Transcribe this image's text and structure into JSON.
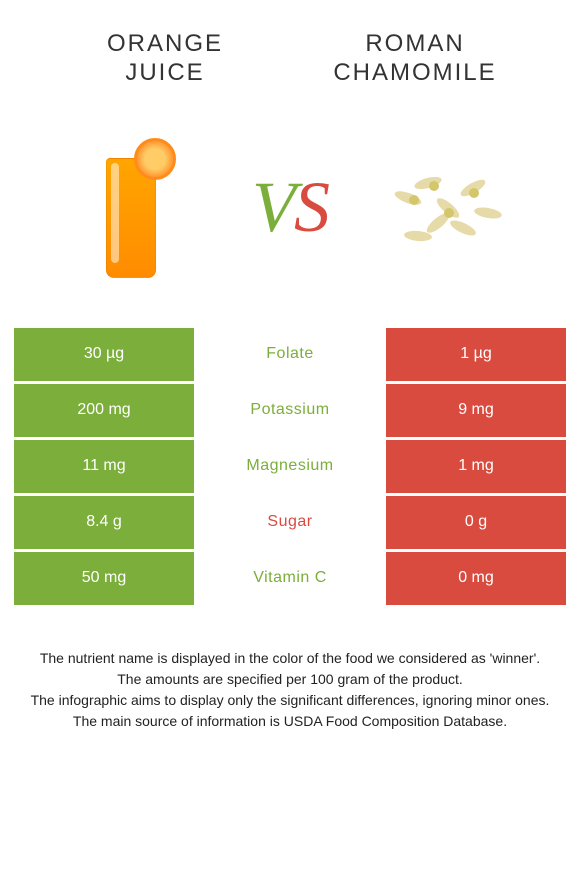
{
  "left_item": {
    "title_line1": "ORANGE",
    "title_line2": "JUICE"
  },
  "right_item": {
    "title_line1": "ROMAN",
    "title_line2": "CHAMOMILE"
  },
  "vs": {
    "v": "V",
    "s": "S"
  },
  "colors": {
    "left_bg": "#7bae3a",
    "right_bg": "#d94a3f",
    "nutrient_left_win": "#7bae3a",
    "nutrient_right_win": "#d94a3f",
    "footer_text": "#222222"
  },
  "rows": [
    {
      "left": "30 µg",
      "nutrient": "Folate",
      "right": "1 µg",
      "winner": "left"
    },
    {
      "left": "200 mg",
      "nutrient": "Potassium",
      "right": "9 mg",
      "winner": "left"
    },
    {
      "left": "11 mg",
      "nutrient": "Magnesium",
      "right": "1 mg",
      "winner": "left"
    },
    {
      "left": "8.4 g",
      "nutrient": "Sugar",
      "right": "0 g",
      "winner": "right"
    },
    {
      "left": "50 mg",
      "nutrient": "Vitamin C",
      "right": "0 mg",
      "winner": "left"
    }
  ],
  "footer": {
    "line1": "The nutrient name is displayed in the color of the food we considered as 'winner'.",
    "line2": "The amounts are specified per 100 gram of the product.",
    "line3": "The infographic aims to display only the significant differences, ignoring minor ones.",
    "line4": "The main source of information is USDA Food Composition Database."
  }
}
